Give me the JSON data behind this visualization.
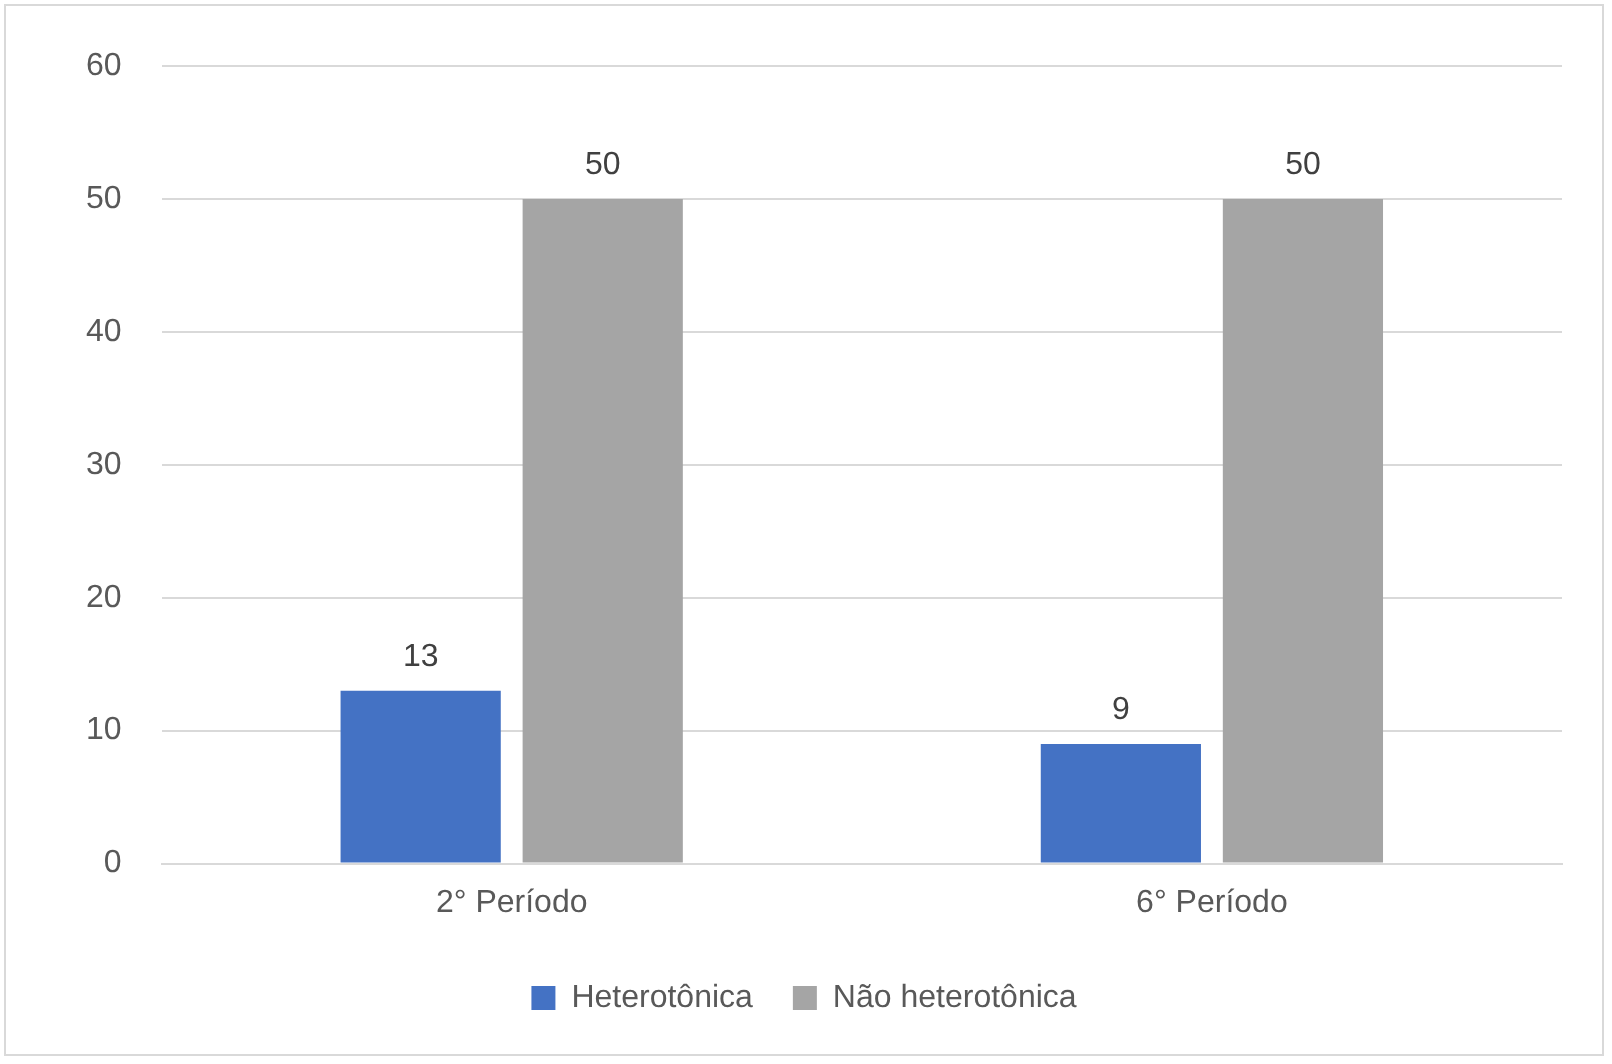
{
  "chart_data": {
    "type": "bar",
    "categories": [
      "2° Período",
      "6° Período"
    ],
    "series": [
      {
        "name": "Heterotônica",
        "color": "#4472c4",
        "values": [
          13,
          9
        ]
      },
      {
        "name": "Não heterotônica",
        "color": "#a5a5a5",
        "values": [
          50,
          50
        ]
      }
    ],
    "ylim": [
      0,
      60
    ],
    "yticks": [
      0,
      10,
      20,
      30,
      40,
      50,
      60
    ],
    "grid": "y",
    "legend": "bottom",
    "data_labels": true
  }
}
